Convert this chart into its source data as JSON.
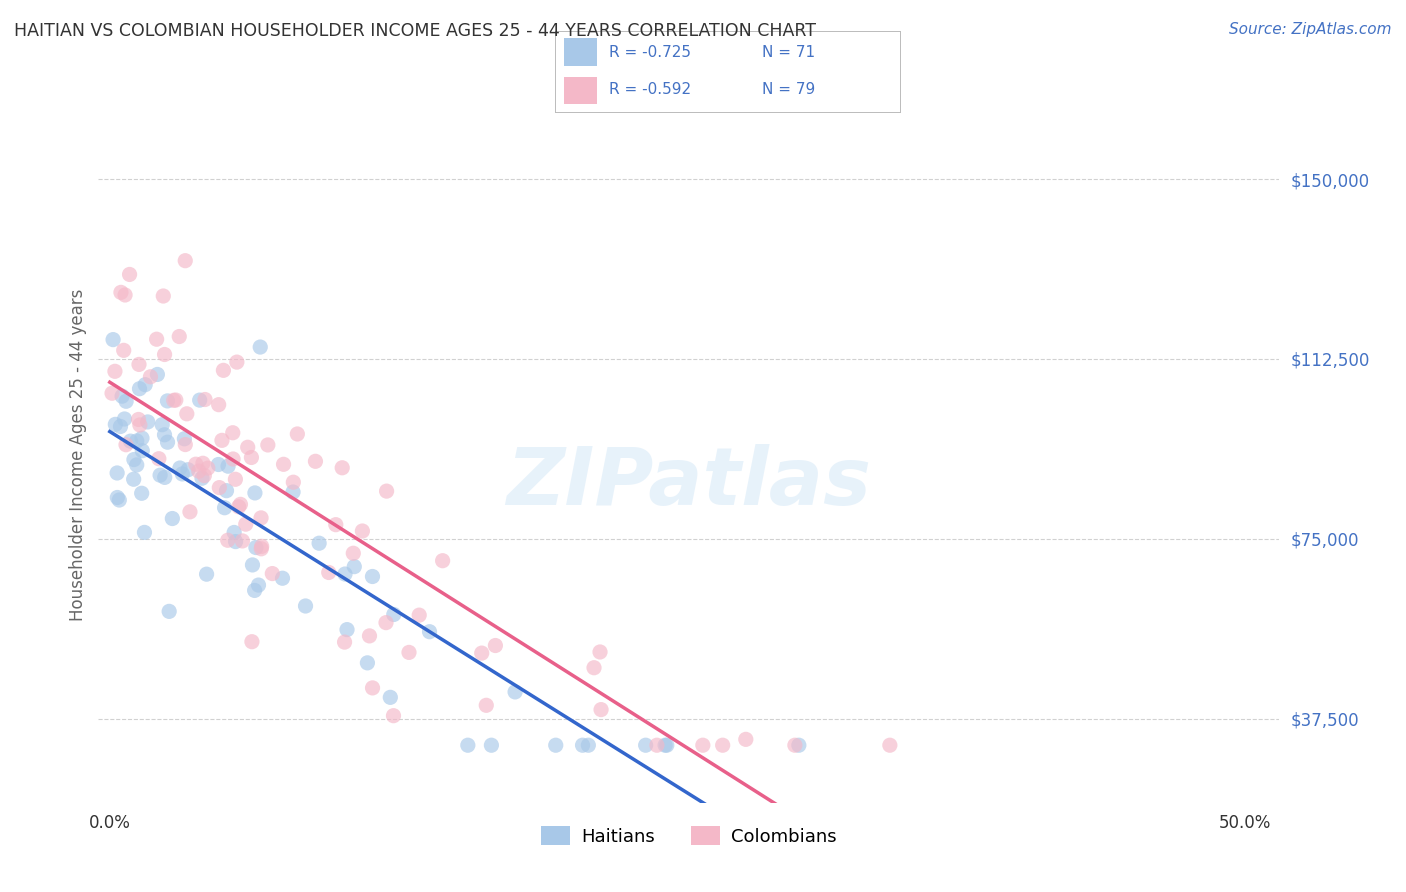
{
  "title": "HAITIAN VS COLOMBIAN HOUSEHOLDER INCOME AGES 25 - 44 YEARS CORRELATION CHART",
  "source": "Source: ZipAtlas.com",
  "ylabel": "Householder Income Ages 25 - 44 years",
  "ytick_labels": [
    "$37,500",
    "$75,000",
    "$112,500",
    "$150,000"
  ],
  "ytick_values": [
    37500,
    75000,
    112500,
    150000
  ],
  "ylim": [
    20000,
    165000
  ],
  "xlim": [
    -0.005,
    0.515
  ],
  "haitians_color": "#a8c8e8",
  "colombians_color": "#f4b8c8",
  "haitians_line_color": "#3366cc",
  "colombians_line_color": "#e8608a",
  "legend_text_color": "#4472c4",
  "watermark_text": "ZIPatlas",
  "R_haitians": -0.725,
  "R_colombians": -0.592,
  "N_haitians": 71,
  "N_colombians": 79,
  "background_color": "#ffffff",
  "grid_color": "#cccccc",
  "title_color": "#333333",
  "axis_label_color": "#666666",
  "ytick_color": "#4472c4",
  "source_color": "#4472c4",
  "marker_size": 120,
  "marker_alpha": 0.65
}
